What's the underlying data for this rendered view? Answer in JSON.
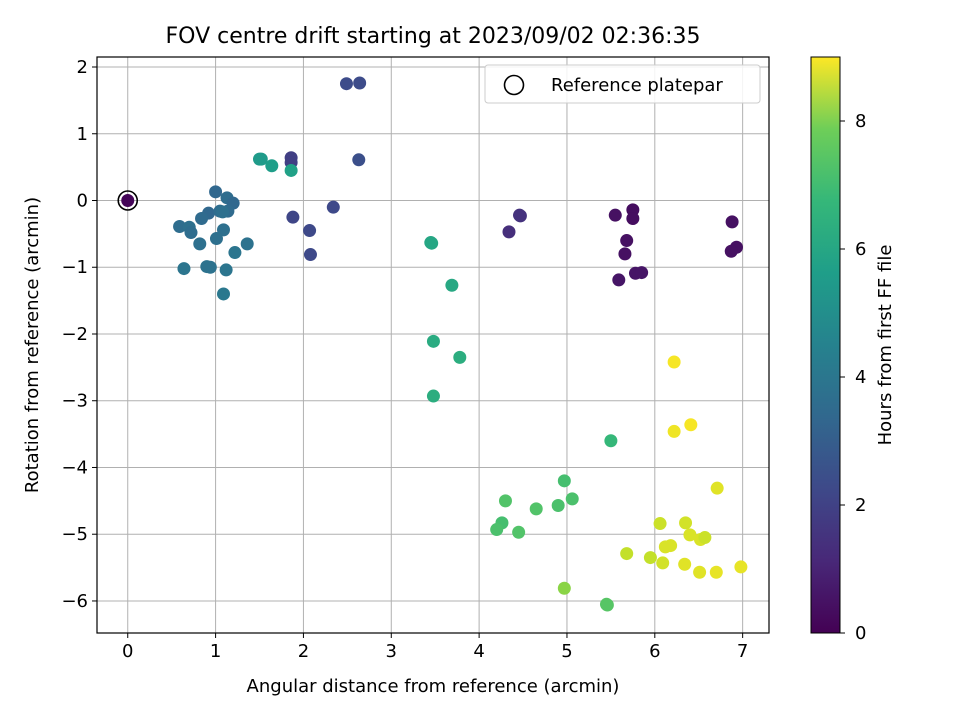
{
  "chart_data": {
    "type": "scatter",
    "title": "FOV centre drift starting at 2023/09/02 02:36:35",
    "xlabel": "Angular distance from reference (arcmin)",
    "ylabel": "Rotation from reference (arcmin)",
    "xlim": [
      -0.35,
      7.3
    ],
    "ylim": [
      -6.48,
      2.15
    ],
    "xticks": [
      0,
      1,
      2,
      3,
      4,
      5,
      6,
      7
    ],
    "yticks": [
      -6,
      -5,
      -4,
      -3,
      -2,
      -1,
      0,
      1,
      2
    ],
    "grid": true,
    "legend": {
      "placement": "top-right",
      "entries": [
        "Reference platepar"
      ]
    },
    "reference_point": {
      "x": 0,
      "y": 0,
      "label": "Reference platepar"
    },
    "colorbar": {
      "label": "Hours from first FF file",
      "range": [
        0,
        9
      ],
      "ticks": [
        0,
        2,
        4,
        6,
        8
      ],
      "colormap": "viridis"
    },
    "points": [
      {
        "x": 0.0,
        "y": 0.0,
        "h": 0.1
      },
      {
        "x": 5.75,
        "y": -0.14,
        "h": 0.3
      },
      {
        "x": 5.55,
        "y": -0.22,
        "h": 0.4
      },
      {
        "x": 5.75,
        "y": -0.27,
        "h": 0.3
      },
      {
        "x": 5.68,
        "y": -0.6,
        "h": 0.4
      },
      {
        "x": 5.66,
        "y": -0.8,
        "h": 0.4
      },
      {
        "x": 5.59,
        "y": -1.19,
        "h": 0.5
      },
      {
        "x": 5.78,
        "y": -1.09,
        "h": 0.5
      },
      {
        "x": 5.85,
        "y": -1.08,
        "h": 0.5
      },
      {
        "x": 6.88,
        "y": -0.32,
        "h": 0.4
      },
      {
        "x": 6.93,
        "y": -0.7,
        "h": 0.4
      },
      {
        "x": 6.87,
        "y": -0.76,
        "h": 0.4
      },
      {
        "x": 4.46,
        "y": -0.22,
        "h": 1.3
      },
      {
        "x": 4.47,
        "y": -0.23,
        "h": 1.3
      },
      {
        "x": 4.34,
        "y": -0.47,
        "h": 1.2
      },
      {
        "x": 1.86,
        "y": 0.64,
        "h": 1.7
      },
      {
        "x": 1.86,
        "y": 0.57,
        "h": 1.7
      },
      {
        "x": 1.88,
        "y": -0.25,
        "h": 1.9
      },
      {
        "x": 2.07,
        "y": -0.45,
        "h": 2.0
      },
      {
        "x": 2.08,
        "y": -0.81,
        "h": 2.0
      },
      {
        "x": 2.34,
        "y": -0.1,
        "h": 2.0
      },
      {
        "x": 2.49,
        "y": 1.75,
        "h": 2.1
      },
      {
        "x": 2.64,
        "y": 1.76,
        "h": 2.1
      },
      {
        "x": 2.63,
        "y": 0.61,
        "h": 2.2
      },
      {
        "x": 1.0,
        "y": 0.13,
        "h": 3.0
      },
      {
        "x": 1.13,
        "y": 0.04,
        "h": 3.2
      },
      {
        "x": 1.2,
        "y": -0.04,
        "h": 3.0
      },
      {
        "x": 0.92,
        "y": -0.19,
        "h": 3.0
      },
      {
        "x": 1.05,
        "y": -0.16,
        "h": 3.2
      },
      {
        "x": 1.14,
        "y": -0.16,
        "h": 3.1
      },
      {
        "x": 1.08,
        "y": -0.17,
        "h": 3.3
      },
      {
        "x": 0.84,
        "y": -0.27,
        "h": 3.1
      },
      {
        "x": 0.59,
        "y": -0.39,
        "h": 3.2
      },
      {
        "x": 0.7,
        "y": -0.4,
        "h": 3.3
      },
      {
        "x": 0.72,
        "y": -0.48,
        "h": 3.2
      },
      {
        "x": 1.09,
        "y": -0.44,
        "h": 3.3
      },
      {
        "x": 1.01,
        "y": -0.57,
        "h": 3.3
      },
      {
        "x": 0.82,
        "y": -0.65,
        "h": 3.3
      },
      {
        "x": 1.36,
        "y": -0.65,
        "h": 3.4
      },
      {
        "x": 1.22,
        "y": -0.78,
        "h": 3.5
      },
      {
        "x": 0.9,
        "y": -0.99,
        "h": 3.4
      },
      {
        "x": 0.94,
        "y": -1.0,
        "h": 3.4
      },
      {
        "x": 0.64,
        "y": -1.02,
        "h": 3.5
      },
      {
        "x": 1.12,
        "y": -1.04,
        "h": 3.5
      },
      {
        "x": 1.09,
        "y": -1.4,
        "h": 3.6
      },
      {
        "x": 1.52,
        "y": 0.62,
        "h": 4.9
      },
      {
        "x": 1.5,
        "y": 0.62,
        "h": 4.9
      },
      {
        "x": 1.64,
        "y": 0.52,
        "h": 5.0
      },
      {
        "x": 1.86,
        "y": 0.45,
        "h": 5.1
      },
      {
        "x": 3.45,
        "y": -0.63,
        "h": 5.3
      },
      {
        "x": 3.46,
        "y": -0.64,
        "h": 5.3
      },
      {
        "x": 3.69,
        "y": -1.27,
        "h": 5.4
      },
      {
        "x": 3.48,
        "y": -2.11,
        "h": 5.5
      },
      {
        "x": 3.78,
        "y": -2.35,
        "h": 5.6
      },
      {
        "x": 3.48,
        "y": -2.93,
        "h": 5.6
      },
      {
        "x": 5.5,
        "y": -3.6,
        "h": 6.0
      },
      {
        "x": 4.97,
        "y": -4.2,
        "h": 6.3
      },
      {
        "x": 5.06,
        "y": -4.47,
        "h": 6.4
      },
      {
        "x": 4.9,
        "y": -4.57,
        "h": 6.4
      },
      {
        "x": 4.3,
        "y": -4.5,
        "h": 6.5
      },
      {
        "x": 4.65,
        "y": -4.62,
        "h": 6.5
      },
      {
        "x": 4.26,
        "y": -4.83,
        "h": 6.3
      },
      {
        "x": 4.2,
        "y": -4.93,
        "h": 6.4
      },
      {
        "x": 4.45,
        "y": -4.97,
        "h": 6.5
      },
      {
        "x": 4.97,
        "y": -5.81,
        "h": 7.4
      },
      {
        "x": 5.45,
        "y": -6.05,
        "h": 6.6
      },
      {
        "x": 5.46,
        "y": -6.06,
        "h": 6.6
      },
      {
        "x": 6.22,
        "y": -2.42,
        "h": 8.9
      },
      {
        "x": 6.22,
        "y": -3.46,
        "h": 8.8
      },
      {
        "x": 6.41,
        "y": -3.36,
        "h": 8.9
      },
      {
        "x": 6.71,
        "y": -4.31,
        "h": 8.6
      },
      {
        "x": 6.06,
        "y": -4.84,
        "h": 8.3
      },
      {
        "x": 6.35,
        "y": -4.83,
        "h": 8.4
      },
      {
        "x": 6.4,
        "y": -5.01,
        "h": 8.5
      },
      {
        "x": 6.52,
        "y": -5.08,
        "h": 8.5
      },
      {
        "x": 6.57,
        "y": -5.05,
        "h": 8.3
      },
      {
        "x": 6.12,
        "y": -5.19,
        "h": 8.5
      },
      {
        "x": 6.18,
        "y": -5.17,
        "h": 8.5
      },
      {
        "x": 5.68,
        "y": -5.29,
        "h": 8.2
      },
      {
        "x": 5.95,
        "y": -5.35,
        "h": 8.2
      },
      {
        "x": 6.09,
        "y": -5.43,
        "h": 8.4
      },
      {
        "x": 6.34,
        "y": -5.45,
        "h": 8.6
      },
      {
        "x": 6.51,
        "y": -5.57,
        "h": 8.6
      },
      {
        "x": 6.7,
        "y": -5.57,
        "h": 8.7
      },
      {
        "x": 6.98,
        "y": -5.49,
        "h": 8.7
      }
    ]
  }
}
